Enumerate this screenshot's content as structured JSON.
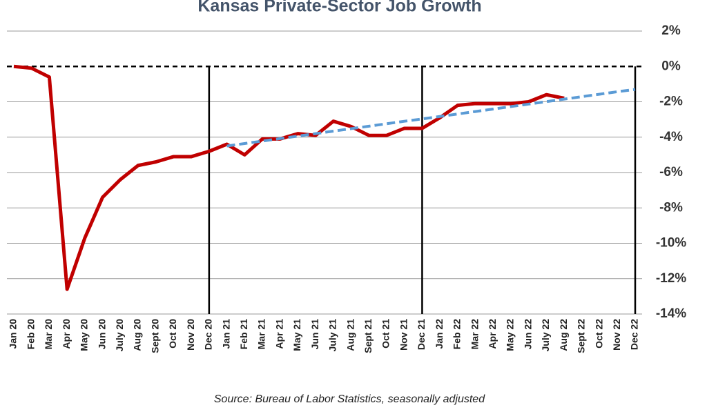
{
  "chart_data": {
    "type": "line",
    "title": "Kansas Private-Sector Job Growth",
    "source": "Source: Bureau of Labor Statistics, seasonally adjusted",
    "categories": [
      "Jan 20",
      "Feb 20",
      "Mar 20",
      "Apr 20",
      "May 20",
      "Jun 20",
      "July 20",
      "Aug 20",
      "Sept 20",
      "Oct 20",
      "Nov 20",
      "Dec 20",
      "Jan 21",
      "Feb 21",
      "Mar 21",
      "Apr 21",
      "May 21",
      "Jun 21",
      "July 21",
      "Aug 21",
      "Sept 21",
      "Oct 21",
      "Nov 21",
      "Dec 21",
      "Jan 22",
      "Feb 22",
      "Mar 22",
      "Apr 22",
      "May 22",
      "Jun 22",
      "July 22",
      "Aug 22",
      "Sept 22",
      "Oct 22",
      "Nov 22",
      "Dec 22"
    ],
    "series": [
      {
        "color": "#c00000",
        "dashed": false,
        "values": [
          0,
          -0.1,
          -0.6,
          -12.6,
          -9.7,
          -7.4,
          -6.4,
          -5.6,
          -5.4,
          -5.1,
          -5.1,
          -4.8,
          -4.4,
          -5.0,
          -4.1,
          -4.1,
          -3.8,
          -3.9,
          -3.1,
          -3.4,
          -3.9,
          -3.9,
          -3.5,
          -3.5,
          -2.9,
          -2.2,
          -2.1,
          -2.1,
          -2.1,
          -2.0,
          -1.6,
          -1.8,
          null,
          null,
          null,
          null
        ]
      },
      {
        "color": "#5b9bd5",
        "dashed": true,
        "values": [
          null,
          null,
          null,
          null,
          null,
          null,
          null,
          null,
          null,
          null,
          null,
          null,
          -4.5,
          -4.36,
          -4.22,
          -4.08,
          -3.94,
          -3.8,
          -3.66,
          -3.52,
          -3.38,
          -3.24,
          -3.1,
          -2.97,
          -2.83,
          -2.69,
          -2.55,
          -2.41,
          -2.27,
          -2.13,
          -1.99,
          -1.85,
          -1.71,
          -1.57,
          -1.43,
          -1.3
        ]
      }
    ],
    "ylim": [
      -14,
      2
    ],
    "yticks": [
      {
        "value": 2,
        "label": "2%"
      },
      {
        "value": 0,
        "label": "0%"
      },
      {
        "value": -2,
        "label": "-2%"
      },
      {
        "value": -4,
        "label": "-4%"
      },
      {
        "value": -6,
        "label": "-6%"
      },
      {
        "value": -8,
        "label": "-8%"
      },
      {
        "value": -10,
        "label": "-10%"
      },
      {
        "value": -12,
        "label": "-12%"
      },
      {
        "value": -14,
        "label": "-14%"
      }
    ],
    "grid": true
  }
}
